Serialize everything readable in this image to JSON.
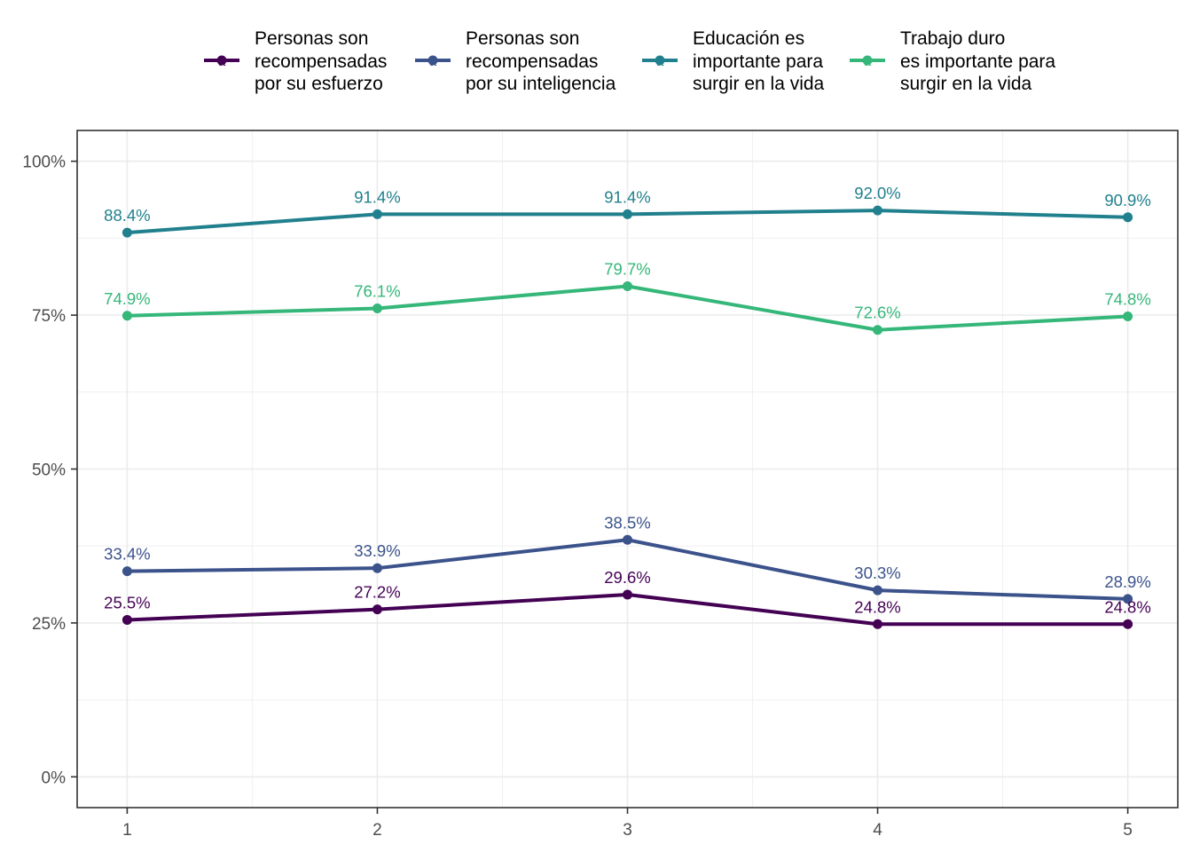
{
  "chart_data": {
    "type": "line",
    "title": "",
    "xlabel": "",
    "ylabel": "",
    "x": [
      "1",
      "2",
      "3",
      "4",
      "5"
    ],
    "xlim": [
      0.8,
      5.2
    ],
    "ylim": [
      -0.05,
      1.05
    ],
    "y_ticks": [
      {
        "value": 0,
        "label": "0%"
      },
      {
        "value": 0.25,
        "label": "25%"
      },
      {
        "value": 0.5,
        "label": "50%"
      },
      {
        "value": 0.75,
        "label": "75%"
      },
      {
        "value": 1,
        "label": "100%"
      }
    ],
    "grid": true,
    "legend_position": "top",
    "legend_key_glyph": "a",
    "series": [
      {
        "name": "Personas son recompensadas por su esfuerzo",
        "name_lines": [
          "Personas son",
          "recompensadas",
          "por su esfuerzo"
        ],
        "color": "#440154",
        "values": [
          0.255,
          0.272,
          0.296,
          0.248,
          0.248
        ],
        "labels": [
          "25.5%",
          "27.2%",
          "29.6%",
          "24.8%",
          "24.8%"
        ]
      },
      {
        "name": "Personas son recompensadas por su inteligencia",
        "name_lines": [
          "Personas son",
          "recompensadas",
          "por su inteligencia"
        ],
        "color": "#3b528b",
        "values": [
          0.334,
          0.339,
          0.385,
          0.303,
          0.289
        ],
        "labels": [
          "33.4%",
          "33.9%",
          "38.5%",
          "30.3%",
          "28.9%"
        ]
      },
      {
        "name": "Educación es importante para surgir en la vida",
        "name_lines": [
          "Educación es",
          "importante para",
          "surgir en la vida"
        ],
        "color": "#21808d",
        "values": [
          0.884,
          0.914,
          0.914,
          0.92,
          0.909
        ],
        "labels": [
          "88.4%",
          "91.4%",
          "91.4%",
          "92.0%",
          "90.9%"
        ]
      },
      {
        "name": "Trabajo duro es importante para surgir en la vida",
        "name_lines": [
          "Trabajo duro",
          "es importante para",
          "surgir en la vida"
        ],
        "color": "#35b779",
        "values": [
          0.749,
          0.761,
          0.797,
          0.726,
          0.748
        ],
        "labels": [
          "74.9%",
          "76.1%",
          "79.7%",
          "72.6%",
          "74.8%"
        ]
      }
    ]
  }
}
